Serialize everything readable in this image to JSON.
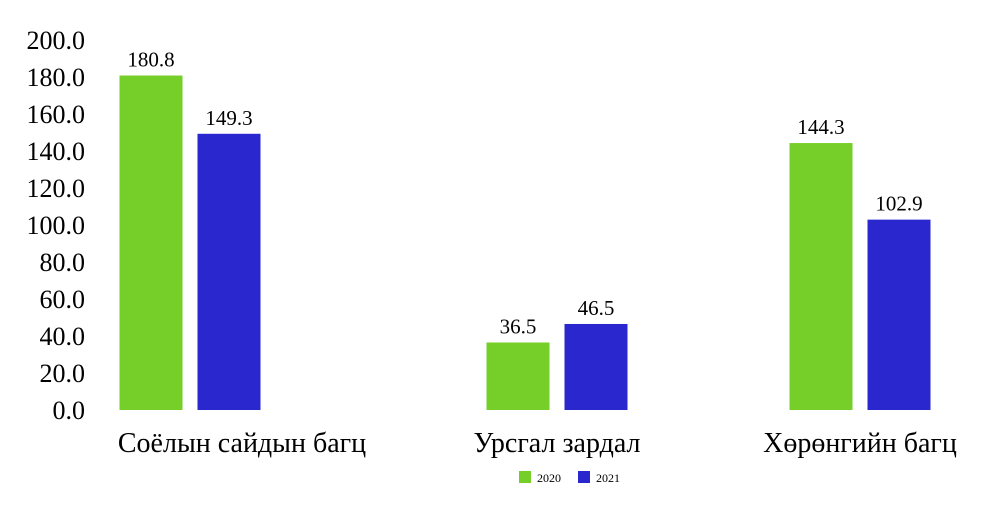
{
  "chart_data": {
    "type": "bar",
    "categories": [
      "Соёлын сайдын багц",
      "Урсгал зардал",
      "Хөрөнгийн багц"
    ],
    "series": [
      {
        "name": "2020",
        "color": "#76cf28",
        "values": [
          180.8,
          36.5,
          144.3
        ],
        "labels": [
          "180.8",
          "36.5",
          "144.3"
        ]
      },
      {
        "name": "2021",
        "color": "#2b27cf",
        "values": [
          149.3,
          46.5,
          102.9
        ],
        "labels": [
          "149.3",
          "46.5",
          "102.9"
        ]
      }
    ],
    "y_ticks": [
      "0.0",
      "20.0",
      "40.0",
      "60.0",
      "80.0",
      "100.0",
      "120.0",
      "140.0",
      "160.0",
      "180.0",
      "200.0"
    ],
    "ylim": [
      0,
      200
    ],
    "grid": false,
    "legend_position": "bottom-center"
  }
}
